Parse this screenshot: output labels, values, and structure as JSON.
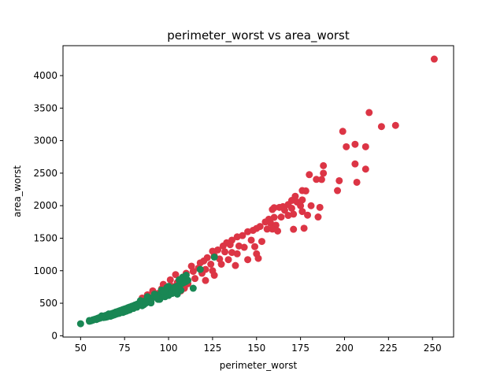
{
  "chart_data": {
    "type": "scatter",
    "title": "perimeter_worst vs area_worst",
    "xlabel": "perimeter_worst",
    "ylabel": "area_worst",
    "xlim": [
      40,
      262
    ],
    "ylim": [
      -20,
      4460
    ],
    "xticks": [
      50,
      75,
      100,
      125,
      150,
      175,
      200,
      225,
      250
    ],
    "yticks": [
      0,
      500,
      1000,
      1500,
      2000,
      2500,
      3000,
      3500,
      4000
    ],
    "grid": false,
    "legend": "none",
    "series": [
      {
        "color": "#dc3545",
        "points": [
          [
            251,
            4254
          ],
          [
            214,
            3432
          ],
          [
            221,
            3216
          ],
          [
            229,
            3234
          ],
          [
            199,
            3143
          ],
          [
            201,
            2906
          ],
          [
            206,
            2944
          ],
          [
            212,
            2906
          ],
          [
            206,
            2642
          ],
          [
            212,
            2562
          ],
          [
            207,
            2360
          ],
          [
            188,
            2615
          ],
          [
            188,
            2499
          ],
          [
            180,
            2477
          ],
          [
            184,
            2404
          ],
          [
            187,
            2403
          ],
          [
            197,
            2384
          ],
          [
            196,
            2232
          ],
          [
            176,
            2232
          ],
          [
            178,
            2227
          ],
          [
            172,
            2145
          ],
          [
            176,
            2089
          ],
          [
            170,
            2080
          ],
          [
            173,
            2056
          ],
          [
            181,
            1999
          ],
          [
            186,
            1974
          ],
          [
            175,
            1999
          ],
          [
            168,
            2017
          ],
          [
            170,
            1960
          ],
          [
            165,
            1985
          ],
          [
            163,
            1974
          ],
          [
            160,
            1968
          ],
          [
            159,
            1941
          ],
          [
            166,
            1930
          ],
          [
            176,
            1910
          ],
          [
            179,
            1854
          ],
          [
            185,
            1826
          ],
          [
            171,
            1870
          ],
          [
            168,
            1850
          ],
          [
            164,
            1825
          ],
          [
            160,
            1820
          ],
          [
            157,
            1792
          ],
          [
            155,
            1750
          ],
          [
            158,
            1730
          ],
          [
            161,
            1700
          ],
          [
            152,
            1680
          ],
          [
            150,
            1650
          ],
          [
            156,
            1640
          ],
          [
            162,
            1610
          ],
          [
            171,
            1637
          ],
          [
            177,
            1653
          ],
          [
            159,
            1640
          ],
          [
            148,
            1620
          ],
          [
            145,
            1600
          ],
          [
            142,
            1540
          ],
          [
            139,
            1520
          ],
          [
            136,
            1470
          ],
          [
            147,
            1470
          ],
          [
            153,
            1450
          ],
          [
            133,
            1430
          ],
          [
            135,
            1400
          ],
          [
            131,
            1380
          ],
          [
            140,
            1380
          ],
          [
            143,
            1360
          ],
          [
            149,
            1370
          ],
          [
            128,
            1320
          ],
          [
            125,
            1300
          ],
          [
            132,
            1290
          ],
          [
            136,
            1280
          ],
          [
            139,
            1260
          ],
          [
            150,
            1260
          ],
          [
            126,
            1230
          ],
          [
            122,
            1200
          ],
          [
            129,
            1180
          ],
          [
            134,
            1170
          ],
          [
            145,
            1170
          ],
          [
            151,
            1190
          ],
          [
            120,
            1150
          ],
          [
            118,
            1120
          ],
          [
            124,
            1100
          ],
          [
            130,
            1100
          ],
          [
            138,
            1080
          ],
          [
            113,
            1070
          ],
          [
            117,
            1040
          ],
          [
            121,
            1020
          ],
          [
            125,
            1000
          ],
          [
            114,
            990
          ],
          [
            110,
            960
          ],
          [
            119,
            960
          ],
          [
            126,
            930
          ],
          [
            104,
            940
          ],
          [
            108,
            900
          ],
          [
            115,
            880
          ],
          [
            121,
            850
          ],
          [
            101,
            860
          ],
          [
            105,
            820
          ],
          [
            111,
            800
          ],
          [
            97,
            790
          ],
          [
            102,
            760
          ],
          [
            96,
            720
          ],
          [
            109,
            730
          ],
          [
            91,
            690
          ],
          [
            94,
            650
          ],
          [
            100,
            680
          ],
          [
            88,
            630
          ],
          [
            92,
            600
          ],
          [
            98,
            620
          ],
          [
            85,
            580
          ],
          [
            89,
            560
          ],
          [
            95,
            600
          ],
          [
            103,
            700
          ],
          [
            107,
            690
          ]
        ]
      },
      {
        "color": "#198754",
        "points": [
          [
            50,
            185
          ],
          [
            55,
            223
          ],
          [
            57,
            240
          ],
          [
            58,
            252
          ],
          [
            59,
            262
          ],
          [
            60,
            272
          ],
          [
            61,
            282
          ],
          [
            62,
            292
          ],
          [
            63,
            300
          ],
          [
            64,
            310
          ],
          [
            65,
            318
          ],
          [
            66,
            326
          ],
          [
            67,
            334
          ],
          [
            68,
            344
          ],
          [
            69,
            352
          ],
          [
            70,
            364
          ],
          [
            71,
            372
          ],
          [
            72,
            382
          ],
          [
            73,
            392
          ],
          [
            74,
            402
          ],
          [
            75,
            412
          ],
          [
            76,
            420
          ],
          [
            77,
            432
          ],
          [
            78,
            442
          ],
          [
            79,
            452
          ],
          [
            80,
            462
          ],
          [
            81,
            474
          ],
          [
            82,
            484
          ],
          [
            83,
            496
          ],
          [
            84,
            506
          ],
          [
            85,
            518
          ],
          [
            86,
            530
          ],
          [
            87,
            540
          ],
          [
            88,
            552
          ],
          [
            89,
            564
          ],
          [
            90,
            576
          ],
          [
            91,
            588
          ],
          [
            92,
            600
          ],
          [
            93,
            612
          ],
          [
            94,
            624
          ],
          [
            95,
            636
          ],
          [
            96,
            648
          ],
          [
            97,
            660
          ],
          [
            98,
            672
          ],
          [
            99,
            686
          ],
          [
            100,
            698
          ],
          [
            101,
            712
          ],
          [
            102,
            724
          ],
          [
            103,
            738
          ],
          [
            104,
            752
          ],
          [
            105,
            766
          ],
          [
            106,
            780
          ],
          [
            107,
            794
          ],
          [
            108,
            808
          ],
          [
            109,
            822
          ],
          [
            110,
            836
          ],
          [
            111,
            852
          ],
          [
            108,
            900
          ],
          [
            110,
            930
          ],
          [
            106,
            860
          ],
          [
            105,
            640
          ],
          [
            100,
            620
          ],
          [
            95,
            560
          ],
          [
            90,
            505
          ],
          [
            85,
            462
          ],
          [
            80,
            420
          ],
          [
            76,
            378
          ],
          [
            72,
            345
          ],
          [
            68,
            310
          ],
          [
            64,
            284
          ],
          [
            60,
            262
          ],
          [
            56,
            230
          ],
          [
            70,
            330
          ],
          [
            74,
            358
          ],
          [
            78,
            398
          ],
          [
            82,
            440
          ],
          [
            86,
            478
          ],
          [
            90,
            520
          ],
          [
            94,
            560
          ],
          [
            98,
            600
          ],
          [
            102,
            650
          ],
          [
            114,
            730
          ],
          [
            118,
            1020
          ],
          [
            126,
            1210
          ],
          [
            96,
            700
          ],
          [
            92,
            640
          ],
          [
            88,
            600
          ],
          [
            84,
            540
          ],
          [
            100,
            760
          ],
          [
            103,
            720
          ],
          [
            97,
            680
          ],
          [
            93,
            590
          ],
          [
            89,
            530
          ],
          [
            87,
            500
          ],
          [
            83,
            470
          ],
          [
            81,
            450
          ],
          [
            79,
            430
          ],
          [
            77,
            390
          ],
          [
            75,
            370
          ],
          [
            73,
            360
          ],
          [
            71,
            340
          ],
          [
            69,
            320
          ],
          [
            67,
            300
          ],
          [
            65,
            290
          ],
          [
            63,
            280
          ],
          [
            61,
            270
          ],
          [
            59,
            250
          ],
          [
            57,
            245
          ],
          [
            55,
            235
          ],
          [
            62,
            305
          ],
          [
            66,
            336
          ],
          [
            99,
            740
          ],
          [
            107,
            700
          ],
          [
            104,
            700
          ]
        ]
      }
    ]
  }
}
